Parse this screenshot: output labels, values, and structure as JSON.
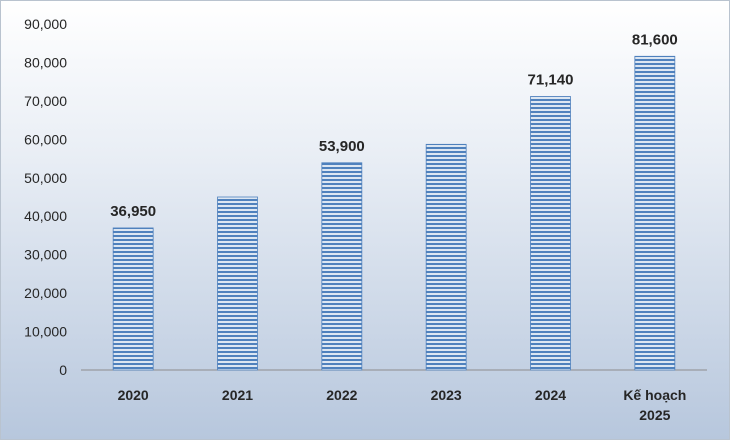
{
  "chart_data": {
    "type": "bar",
    "title": "",
    "xlabel": "",
    "ylabel": "",
    "categories": [
      [
        "2020"
      ],
      [
        "2021"
      ],
      [
        "2022"
      ],
      [
        "2023"
      ],
      [
        "2024"
      ],
      [
        "Kế hoạch",
        "2025"
      ]
    ],
    "values": [
      36950,
      45000,
      53900,
      58700,
      71140,
      81600
    ],
    "data_labels": [
      "36,950",
      "",
      "53,900",
      "",
      "71,140",
      "81,600"
    ],
    "ylim": [
      0,
      90000
    ],
    "yticks": [
      0,
      10000,
      20000,
      30000,
      40000,
      50000,
      60000,
      70000,
      80000,
      90000
    ],
    "ytick_labels": [
      "0",
      "10,000",
      "20,000",
      "30,000",
      "40,000",
      "50,000",
      "60,000",
      "70,000",
      "80,000",
      "90,000"
    ],
    "grid": false,
    "legend": "none",
    "bar_color": "#4f81bd",
    "bar_stripe_color": "#dce6f2"
  }
}
